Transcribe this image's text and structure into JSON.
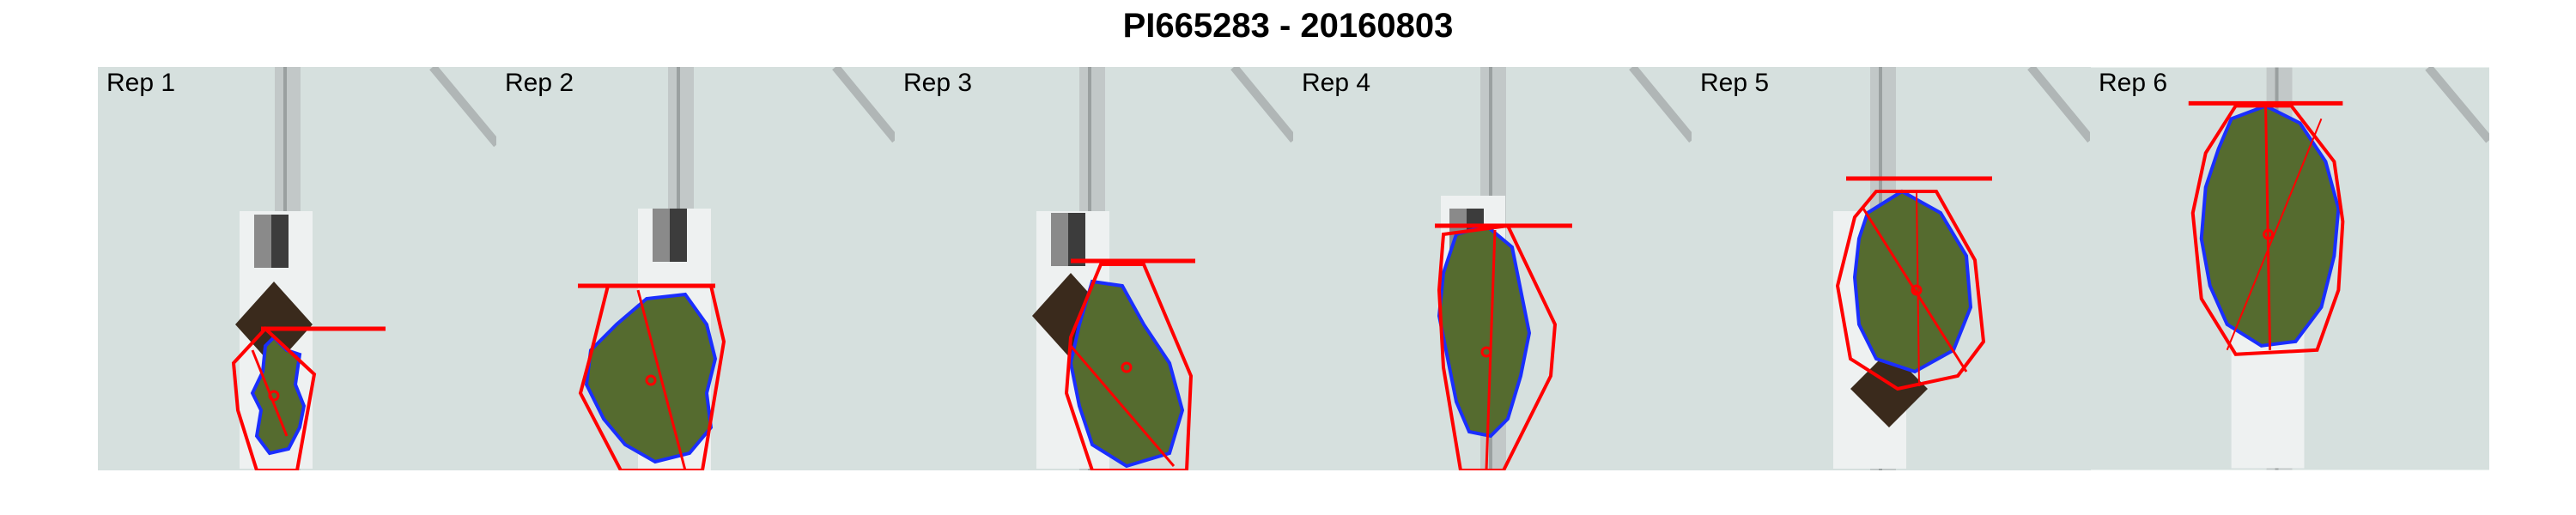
{
  "figure": {
    "title": "PI665283 - 20160803",
    "panels": [
      {
        "label": "Rep 1"
      },
      {
        "label": "Rep 2"
      },
      {
        "label": "Rep 3"
      },
      {
        "label": "Rep 4"
      },
      {
        "label": "Rep 5"
      },
      {
        "label": "Rep 6"
      }
    ]
  },
  "colors": {
    "background": "#d9e3e1",
    "hull": "#ff0000",
    "contour": "#1a2eff",
    "leaf": "#556b2f",
    "pot": "#3a2a1c",
    "calibration_card": "#e6e6e6"
  }
}
